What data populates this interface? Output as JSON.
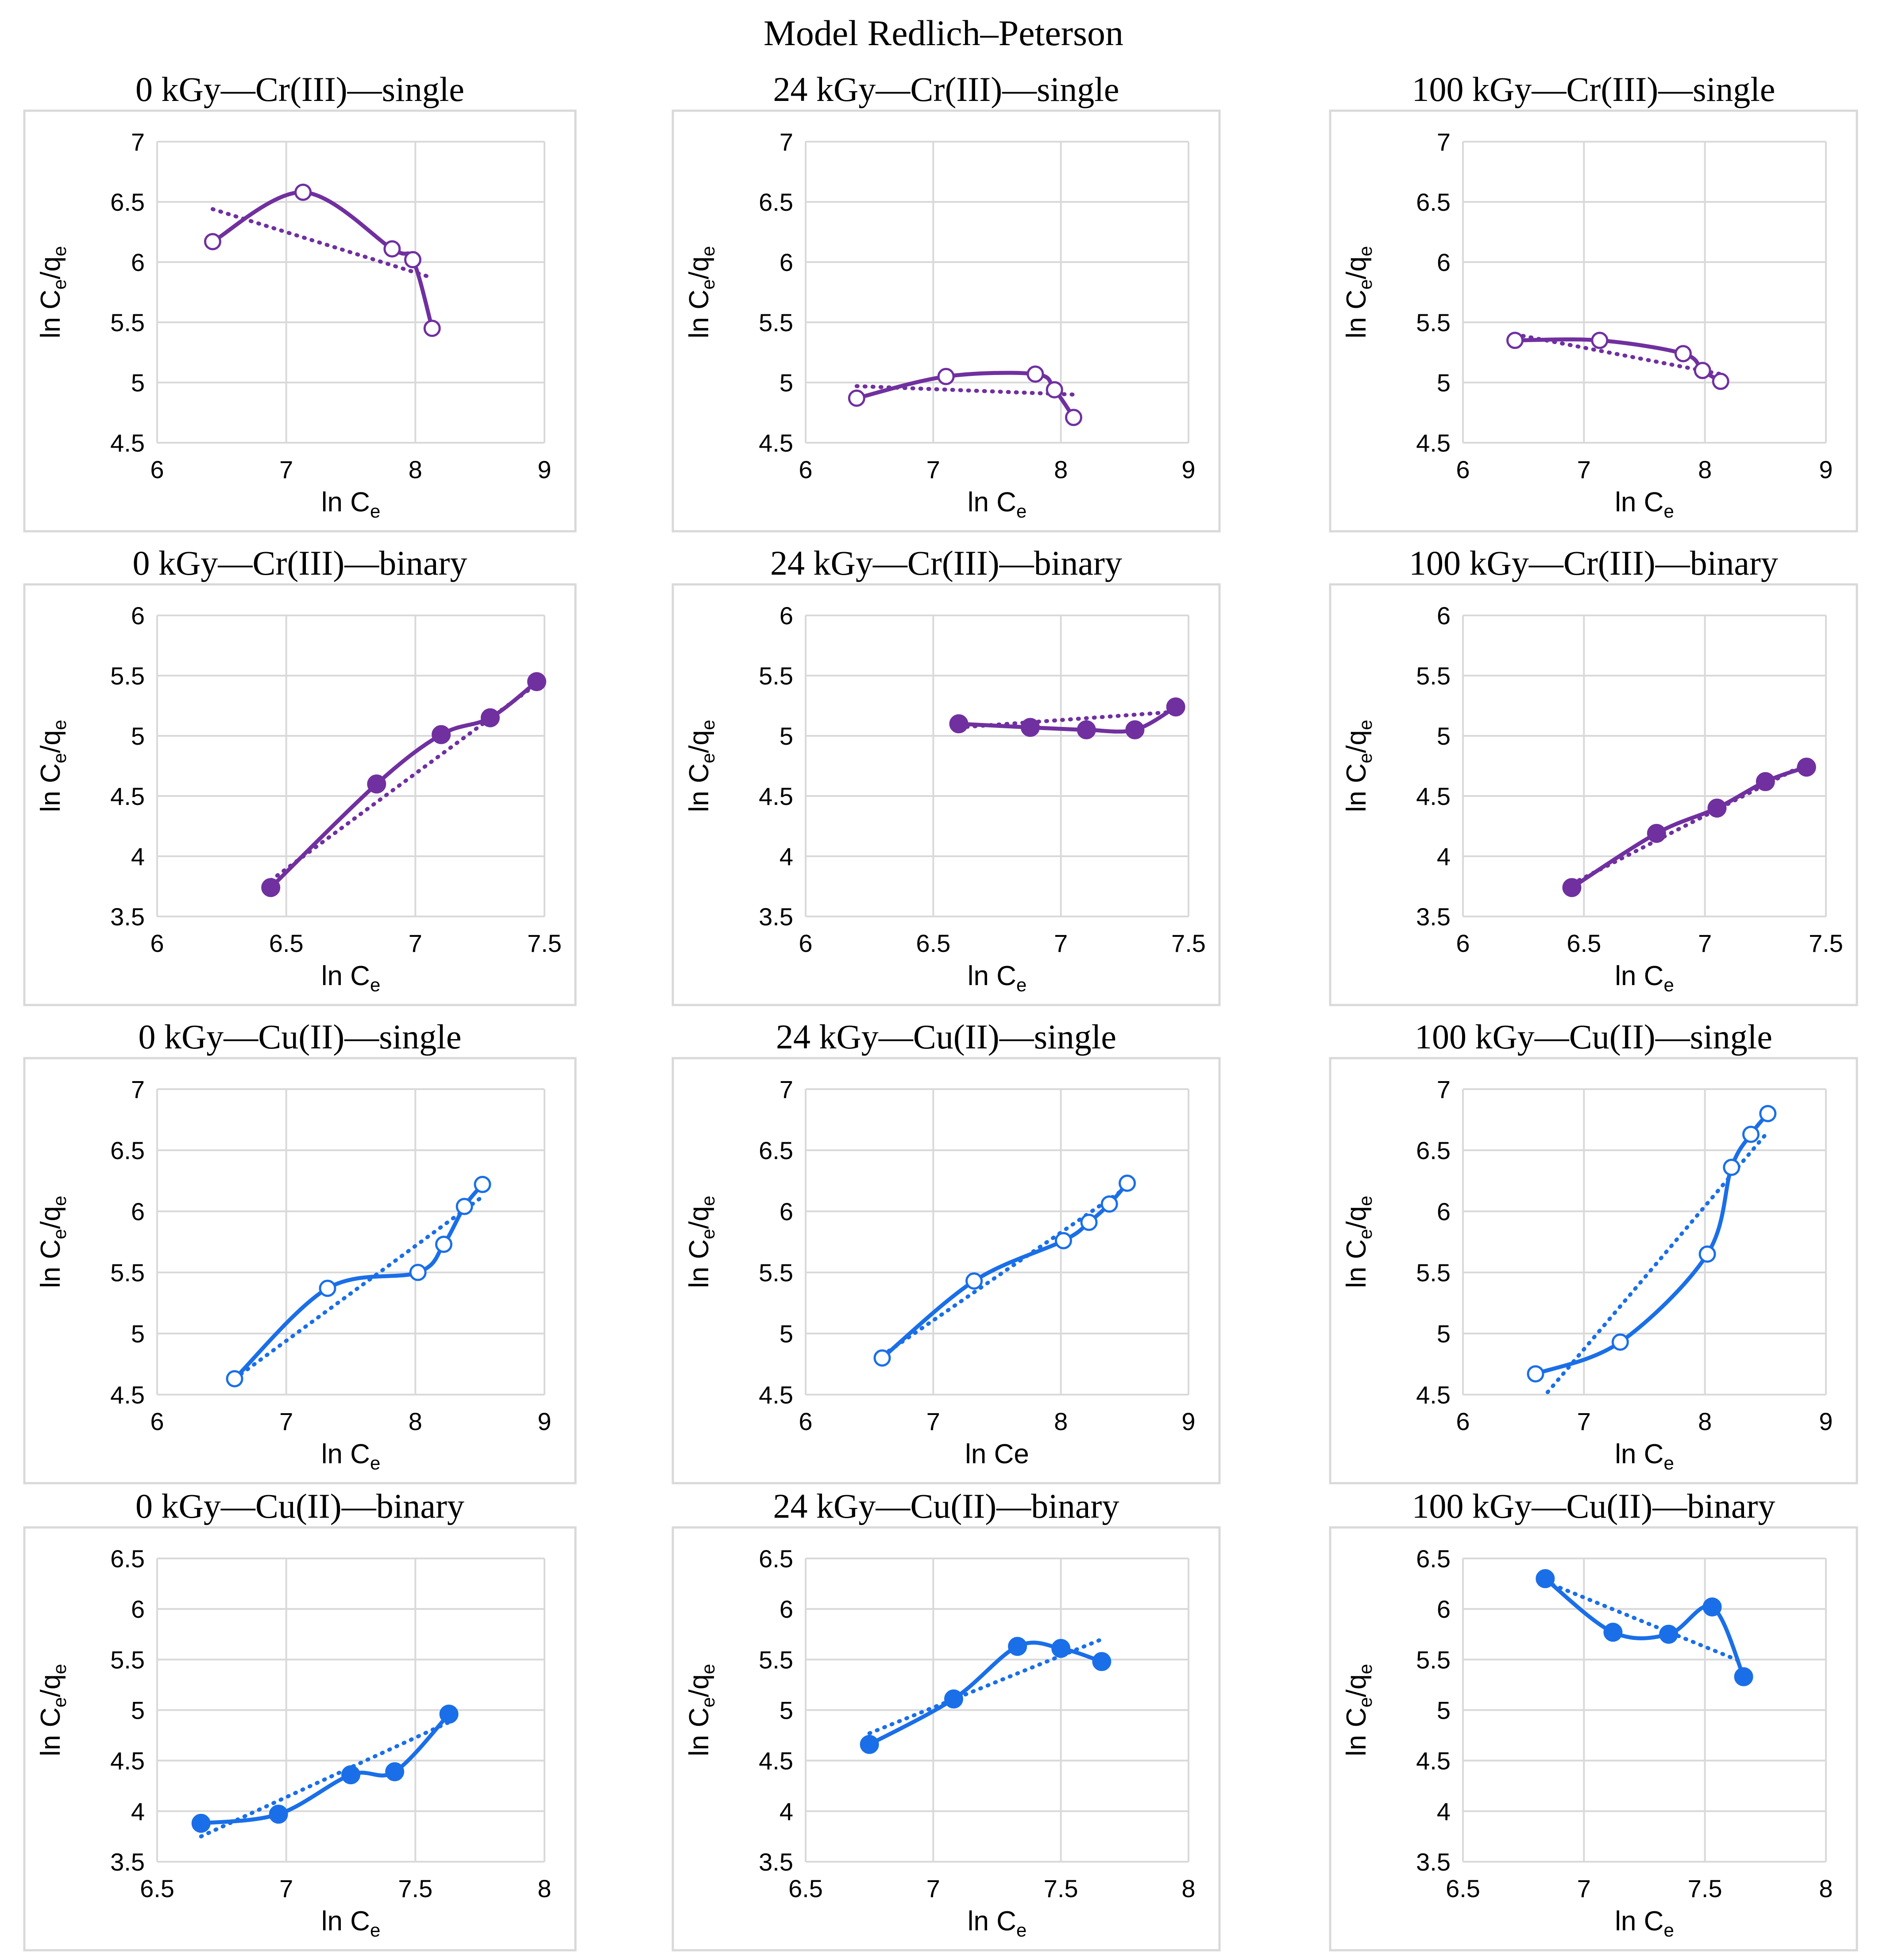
{
  "title": "Model Redlich–Peterson",
  "colors": {
    "cr": "#7030A0",
    "cu": "#1A6FE8",
    "grid": "#D9D9D9",
    "frame": "#D9D9D9",
    "text": "#000000"
  },
  "chart_data": [
    {
      "type": "line",
      "title": "0 kGy—Cr(III)—single",
      "xlabel": "ln C",
      "xlabel_sub": "e",
      "ylabel": "ln C",
      "ylabel_sub1": "e",
      "ylabel_mid": "/q",
      "ylabel_sub2": "e",
      "xlim": [
        6,
        9
      ],
      "ylim": [
        4.5,
        7
      ],
      "xticks": [
        6,
        7,
        8,
        9
      ],
      "yticks": [
        4.5,
        5,
        5.5,
        6,
        6.5,
        7
      ],
      "color": "cr",
      "marker": "open",
      "series": [
        {
          "x": [
            6.43,
            7.13,
            7.82,
            7.98,
            8.13
          ],
          "y": [
            6.17,
            6.58,
            6.11,
            6.02,
            5.45
          ]
        }
      ],
      "trend": [
        [
          6.43,
          6.44
        ],
        [
          8.13,
          5.87
        ]
      ]
    },
    {
      "type": "line",
      "title": "24 kGy—Cr(III)—single",
      "xlabel": "ln C",
      "xlabel_sub": "e",
      "ylabel": "ln C",
      "ylabel_sub1": "e",
      "ylabel_mid": "/q",
      "ylabel_sub2": "e",
      "xlim": [
        6,
        9
      ],
      "ylim": [
        4.5,
        7
      ],
      "xticks": [
        6,
        7,
        8,
        9
      ],
      "yticks": [
        4.5,
        5,
        5.5,
        6,
        6.5,
        7
      ],
      "color": "cr",
      "marker": "open",
      "series": [
        {
          "x": [
            6.4,
            7.1,
            7.8,
            7.95,
            8.1
          ],
          "y": [
            4.87,
            5.05,
            5.07,
            4.94,
            4.71
          ]
        }
      ],
      "trend": [
        [
          6.4,
          4.97
        ],
        [
          8.1,
          4.9
        ]
      ]
    },
    {
      "type": "line",
      "title": "100 kGy—Cr(III)—single",
      "xlabel": "ln C",
      "xlabel_sub": "e",
      "ylabel": "ln C",
      "ylabel_sub1": "e",
      "ylabel_mid": "/q",
      "ylabel_sub2": "e",
      "xlim": [
        6,
        9
      ],
      "ylim": [
        4.5,
        7
      ],
      "xticks": [
        6,
        7,
        8,
        9
      ],
      "yticks": [
        4.5,
        5,
        5.5,
        6,
        6.5,
        7
      ],
      "color": "cr",
      "marker": "open",
      "series": [
        {
          "x": [
            6.43,
            7.13,
            7.82,
            7.98,
            8.13
          ],
          "y": [
            5.35,
            5.35,
            5.24,
            5.1,
            5.01
          ]
        }
      ],
      "trend": [
        [
          6.43,
          5.4
        ],
        [
          8.13,
          5.07
        ]
      ]
    },
    {
      "type": "line",
      "title": "0 kGy—Cr(III)—binary",
      "xlabel": "ln C",
      "xlabel_sub": "e",
      "ylabel": "ln C",
      "ylabel_sub1": "e",
      "ylabel_mid": "/q",
      "ylabel_sub2": "e",
      "xlim": [
        6,
        7.5
      ],
      "ylim": [
        3.5,
        6
      ],
      "xticks": [
        6,
        6.5,
        7,
        7.5
      ],
      "yticks": [
        3.5,
        4,
        4.5,
        5,
        5.5,
        6
      ],
      "color": "cr",
      "marker": "filled",
      "series": [
        {
          "x": [
            6.44,
            6.85,
            7.1,
            7.29,
            7.47
          ],
          "y": [
            3.74,
            4.6,
            5.01,
            5.15,
            5.45
          ]
        }
      ],
      "trend": [
        [
          6.44,
          3.8
        ],
        [
          7.47,
          5.43
        ]
      ]
    },
    {
      "type": "line",
      "title": "24 kGy—Cr(III)—binary",
      "xlabel": "ln C",
      "xlabel_sub": "e",
      "ylabel": "ln C",
      "ylabel_sub1": "e",
      "ylabel_mid": "/q",
      "ylabel_sub2": "e",
      "xlim": [
        6,
        7.5
      ],
      "ylim": [
        3.5,
        6
      ],
      "xticks": [
        6,
        6.5,
        7,
        7.5
      ],
      "yticks": [
        3.5,
        4,
        4.5,
        5,
        5.5,
        6
      ],
      "color": "cr",
      "marker": "filled",
      "series": [
        {
          "x": [
            6.6,
            6.88,
            7.1,
            7.29,
            7.45
          ],
          "y": [
            5.1,
            5.07,
            5.05,
            5.05,
            5.24
          ]
        }
      ],
      "trend": [
        [
          6.6,
          5.07
        ],
        [
          7.45,
          5.2
        ]
      ]
    },
    {
      "type": "line",
      "title": "100 kGy—Cr(III)—binary",
      "xlabel": "ln C",
      "xlabel_sub": "e",
      "ylabel": "ln C",
      "ylabel_sub1": "e",
      "ylabel_mid": "/q",
      "ylabel_sub2": "e",
      "xlim": [
        6,
        7.5
      ],
      "ylim": [
        3.5,
        6
      ],
      "xticks": [
        6,
        6.5,
        7,
        7.5
      ],
      "yticks": [
        3.5,
        4,
        4.5,
        5,
        5.5,
        6
      ],
      "color": "cr",
      "marker": "filled",
      "series": [
        {
          "x": [
            6.45,
            6.8,
            7.05,
            7.25,
            7.42
          ],
          "y": [
            3.74,
            4.19,
            4.4,
            4.62,
            4.74
          ]
        }
      ],
      "trend": [
        [
          6.45,
          3.77
        ],
        [
          7.42,
          4.77
        ]
      ]
    },
    {
      "type": "line",
      "title": "0 kGy—Cu(II)—single",
      "xlabel": "ln C",
      "xlabel_sub": "e",
      "ylabel": "ln C",
      "ylabel_sub1": "e",
      "ylabel_mid": "/q",
      "ylabel_sub2": "e",
      "xlim": [
        6,
        9
      ],
      "ylim": [
        4.5,
        7
      ],
      "xticks": [
        6,
        7,
        8,
        9
      ],
      "yticks": [
        4.5,
        5,
        5.5,
        6,
        6.5,
        7
      ],
      "color": "cu",
      "marker": "open",
      "series": [
        {
          "x": [
            6.6,
            7.32,
            8.02,
            8.22,
            8.38,
            8.52
          ],
          "y": [
            4.63,
            5.37,
            5.5,
            5.73,
            6.04,
            6.22
          ]
        }
      ],
      "trend": [
        [
          6.6,
          4.63
        ],
        [
          8.52,
          6.12
        ]
      ]
    },
    {
      "type": "line",
      "title": "24 kGy—Cu(II)—single",
      "xlabel": "ln Ce",
      "xlabel_sub": "",
      "ylabel": "ln C",
      "ylabel_sub1": "e",
      "ylabel_mid": "/q",
      "ylabel_sub2": "e",
      "xlim": [
        6,
        9
      ],
      "ylim": [
        4.5,
        7
      ],
      "xticks": [
        6,
        7,
        8,
        9
      ],
      "yticks": [
        4.5,
        5,
        5.5,
        6,
        6.5,
        7
      ],
      "color": "cu",
      "marker": "open",
      "series": [
        {
          "x": [
            6.6,
            7.32,
            8.02,
            8.22,
            8.38,
            8.52
          ],
          "y": [
            4.8,
            5.43,
            5.76,
            5.91,
            6.06,
            6.23
          ]
        }
      ],
      "trend": [
        [
          6.6,
          4.82
        ],
        [
          8.52,
          6.2
        ]
      ]
    },
    {
      "type": "line",
      "title": "100 kGy—Cu(II)—single",
      "xlabel": "ln C",
      "xlabel_sub": "e",
      "ylabel": "ln C",
      "ylabel_sub1": "e",
      "ylabel_mid": "/q",
      "ylabel_sub2": "e",
      "xlim": [
        6,
        9
      ],
      "ylim": [
        4.5,
        7
      ],
      "xticks": [
        6,
        7,
        8,
        9
      ],
      "yticks": [
        4.5,
        5,
        5.5,
        6,
        6.5,
        7
      ],
      "color": "cu",
      "marker": "open",
      "series": [
        {
          "x": [
            6.6,
            7.3,
            8.02,
            8.22,
            8.38,
            8.52
          ],
          "y": [
            4.67,
            4.93,
            5.65,
            6.36,
            6.63,
            6.8
          ]
        }
      ],
      "trend": [
        [
          6.7,
          4.52
        ],
        [
          8.52,
          6.65
        ]
      ]
    },
    {
      "type": "line",
      "title": "0 kGy—Cu(II)—binary",
      "xlabel": "ln C",
      "xlabel_sub": "e",
      "ylabel": "ln C",
      "ylabel_sub1": "e",
      "ylabel_mid": "/q",
      "ylabel_sub2": "e",
      "xlim": [
        6.5,
        8
      ],
      "ylim": [
        3.5,
        6.5
      ],
      "xticks": [
        6.5,
        7,
        7.5,
        8
      ],
      "yticks": [
        3.5,
        4,
        4.5,
        5,
        5.5,
        6,
        6.5
      ],
      "color": "cu",
      "marker": "filled",
      "series": [
        {
          "x": [
            6.67,
            6.97,
            7.25,
            7.42,
            7.63
          ],
          "y": [
            3.88,
            3.97,
            4.36,
            4.39,
            4.96
          ]
        }
      ],
      "trend": [
        [
          6.67,
          3.75
        ],
        [
          7.63,
          4.88
        ]
      ]
    },
    {
      "type": "line",
      "title": "24 kGy—Cu(II)—binary",
      "xlabel": "ln C",
      "xlabel_sub": "e",
      "ylabel": "ln C",
      "ylabel_sub1": "e",
      "ylabel_mid": "/q",
      "ylabel_sub2": "e",
      "xlim": [
        6.5,
        8
      ],
      "ylim": [
        3.5,
        6.5
      ],
      "xticks": [
        6.5,
        7,
        7.5,
        8
      ],
      "yticks": [
        3.5,
        4,
        4.5,
        5,
        5.5,
        6,
        6.5
      ],
      "color": "cu",
      "marker": "filled",
      "series": [
        {
          "x": [
            6.75,
            7.08,
            7.33,
            7.5,
            7.66
          ],
          "y": [
            4.66,
            5.11,
            5.63,
            5.61,
            5.48
          ]
        }
      ],
      "trend": [
        [
          6.75,
          4.77
        ],
        [
          7.66,
          5.7
        ]
      ]
    },
    {
      "type": "line",
      "title": "100 kGy—Cu(II)—binary",
      "xlabel": "ln C",
      "xlabel_sub": "e",
      "ylabel": "ln C",
      "ylabel_sub1": "e",
      "ylabel_mid": "/q",
      "ylabel_sub2": "e",
      "xlim": [
        6.5,
        8
      ],
      "ylim": [
        3.5,
        6.5
      ],
      "xticks": [
        6.5,
        7,
        7.5,
        8
      ],
      "yticks": [
        3.5,
        4,
        4.5,
        5,
        5.5,
        6,
        6.5
      ],
      "color": "cu",
      "marker": "filled",
      "series": [
        {
          "x": [
            6.84,
            7.12,
            7.35,
            7.53,
            7.66
          ],
          "y": [
            6.3,
            5.77,
            5.75,
            6.02,
            5.33
          ]
        }
      ],
      "trend": [
        [
          6.84,
          6.27
        ],
        [
          7.66,
          5.47
        ]
      ]
    }
  ]
}
